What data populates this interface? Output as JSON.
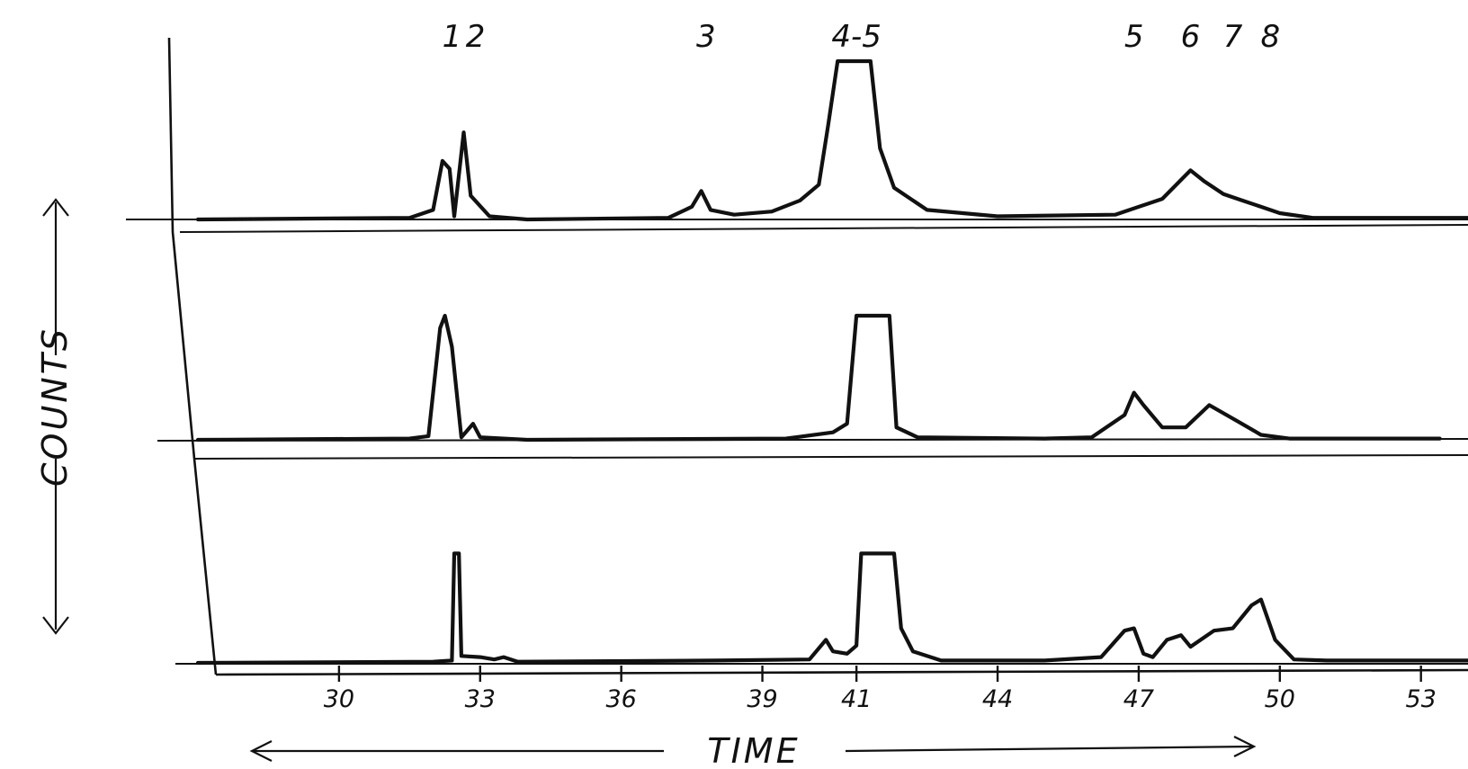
{
  "chart_data": {
    "type": "line",
    "title": "",
    "xlabel": "TIME",
    "ylabel": "COUNTS",
    "xlim": [
      27,
      54
    ],
    "x_ticks": [
      {
        "value": 30,
        "label": "30"
      },
      {
        "value": 33,
        "label": "33"
      },
      {
        "value": 36,
        "label": "36"
      },
      {
        "value": 39,
        "label": "39"
      },
      {
        "value": 41,
        "label": "41"
      },
      {
        "value": 44,
        "label": "44"
      },
      {
        "value": 47,
        "label": "47"
      },
      {
        "value": 50,
        "label": "50"
      },
      {
        "value": 53,
        "label": "53"
      }
    ],
    "peak_labels": [
      {
        "label": "1",
        "x": 32.4
      },
      {
        "label": "2",
        "x": 32.9
      },
      {
        "label": "3",
        "x": 37.8
      },
      {
        "label": "4-5",
        "x": 41.0
      },
      {
        "label": "5",
        "x": 46.9
      },
      {
        "label": "6",
        "x": 48.1
      },
      {
        "label": "7",
        "x": 49.0
      },
      {
        "label": "8",
        "x": 49.8
      }
    ],
    "series": [
      {
        "values_scale": "relative height, 0 = baseline, 1 = full height of trace",
        "points": [
          [
            27.0,
            0
          ],
          [
            31.5,
            0.01
          ],
          [
            32.0,
            0.06
          ],
          [
            32.2,
            0.37
          ],
          [
            32.35,
            0.32
          ],
          [
            32.45,
            0.02
          ],
          [
            32.65,
            0.55
          ],
          [
            32.8,
            0.15
          ],
          [
            33.2,
            0.02
          ],
          [
            34,
            0
          ],
          [
            37,
            0.01
          ],
          [
            37.5,
            0.08
          ],
          [
            37.7,
            0.18
          ],
          [
            37.9,
            0.06
          ],
          [
            38.4,
            0.03
          ],
          [
            39.2,
            0.05
          ],
          [
            39.8,
            0.12
          ],
          [
            40.2,
            0.22
          ],
          [
            40.4,
            0.6
          ],
          [
            40.6,
            1.0
          ],
          [
            41.3,
            1.0
          ],
          [
            41.5,
            0.45
          ],
          [
            41.8,
            0.2
          ],
          [
            42.5,
            0.06
          ],
          [
            44,
            0.02
          ],
          [
            46.5,
            0.03
          ],
          [
            47.5,
            0.13
          ],
          [
            48.1,
            0.31
          ],
          [
            48.4,
            0.24
          ],
          [
            48.8,
            0.16
          ],
          [
            49.2,
            0.12
          ],
          [
            49.6,
            0.08
          ],
          [
            50,
            0.04
          ],
          [
            50.7,
            0.01
          ],
          [
            54,
            0.01
          ]
        ]
      },
      {
        "values_scale": "relative height, 0 = baseline, 1 = full height of trace",
        "points": [
          [
            27.0,
            0
          ],
          [
            31.5,
            0.01
          ],
          [
            31.9,
            0.03
          ],
          [
            32.15,
            0.9
          ],
          [
            32.25,
            1.0
          ],
          [
            32.4,
            0.75
          ],
          [
            32.6,
            0.02
          ],
          [
            32.85,
            0.13
          ],
          [
            33.0,
            0.02
          ],
          [
            34,
            0
          ],
          [
            39.5,
            0.01
          ],
          [
            40.5,
            0.06
          ],
          [
            40.8,
            0.13
          ],
          [
            41.0,
            1.0
          ],
          [
            41.7,
            1.0
          ],
          [
            41.85,
            0.1
          ],
          [
            42.3,
            0.02
          ],
          [
            45,
            0.01
          ],
          [
            46,
            0.02
          ],
          [
            46.7,
            0.2
          ],
          [
            46.9,
            0.38
          ],
          [
            47.1,
            0.28
          ],
          [
            47.5,
            0.1
          ],
          [
            48.0,
            0.1
          ],
          [
            48.5,
            0.28
          ],
          [
            49.1,
            0.15
          ],
          [
            49.6,
            0.04
          ],
          [
            50.2,
            0.01
          ],
          [
            53.4,
            0.01
          ]
        ]
      },
      {
        "values_scale": "relative height, 0 = baseline, 1 = full height of trace",
        "points": [
          [
            27.0,
            0
          ],
          [
            32.0,
            0.01
          ],
          [
            32.4,
            0.02
          ],
          [
            32.45,
            0.95
          ],
          [
            32.55,
            0.95
          ],
          [
            32.6,
            0.06
          ],
          [
            33.0,
            0.05
          ],
          [
            33.3,
            0.03
          ],
          [
            33.5,
            0.05
          ],
          [
            33.8,
            0.01
          ],
          [
            38,
            0.02
          ],
          [
            40.0,
            0.03
          ],
          [
            40.35,
            0.2
          ],
          [
            40.5,
            0.1
          ],
          [
            40.8,
            0.08
          ],
          [
            41.0,
            0.15
          ],
          [
            41.1,
            0.95
          ],
          [
            41.8,
            0.95
          ],
          [
            41.95,
            0.3
          ],
          [
            42.2,
            0.1
          ],
          [
            42.8,
            0.02
          ],
          [
            45,
            0.02
          ],
          [
            46.2,
            0.05
          ],
          [
            46.7,
            0.28
          ],
          [
            46.9,
            0.3
          ],
          [
            47.1,
            0.08
          ],
          [
            47.3,
            0.05
          ],
          [
            47.6,
            0.2
          ],
          [
            47.9,
            0.24
          ],
          [
            48.1,
            0.14
          ],
          [
            48.6,
            0.28
          ],
          [
            49.0,
            0.3
          ],
          [
            49.4,
            0.5
          ],
          [
            49.6,
            0.55
          ],
          [
            49.9,
            0.2
          ],
          [
            50.3,
            0.03
          ],
          [
            51,
            0.02
          ],
          [
            54,
            0.02
          ]
        ]
      }
    ]
  }
}
